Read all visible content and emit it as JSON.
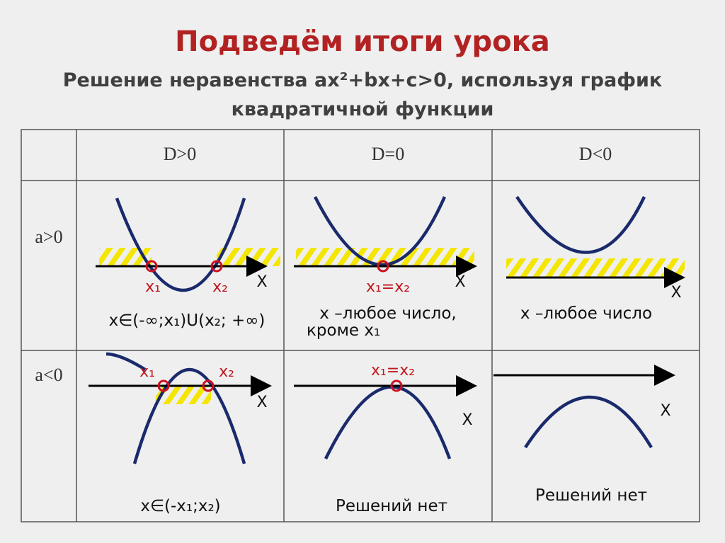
{
  "header": {
    "title": "Подведём итоги урока",
    "subtitle": [
      "Решение неравенства ax²+bx+c>0, используя график",
      "квадратичной функции"
    ]
  },
  "table": {
    "columns": [
      "D>0",
      "D=0",
      "D<0"
    ],
    "rows": [
      "a>0",
      "a<0"
    ],
    "cells": [
      [
        {
          "roots": [
            "x₁",
            "x₂"
          ],
          "axis": "X",
          "answer": [
            "x∈(-∞;x₁)U(x₂; +∞)"
          ]
        },
        {
          "roots": [
            "x₁=x₂"
          ],
          "axis": "X",
          "answer": [
            "x –любое число,",
            "кроме x₁"
          ]
        },
        {
          "roots": [],
          "axis": "X",
          "answer": [
            "x –любое число"
          ]
        }
      ],
      [
        {
          "roots": [
            "x₁",
            "x₂"
          ],
          "axis": "X",
          "answer": [
            "x∈(-x₁;x₂)"
          ]
        },
        {
          "roots": [
            "x₁=x₂"
          ],
          "axis": "X",
          "answer": [
            "Решений нет"
          ]
        },
        {
          "roots": [],
          "axis": "X",
          "answer": [
            "Решений нет"
          ]
        }
      ]
    ]
  }
}
